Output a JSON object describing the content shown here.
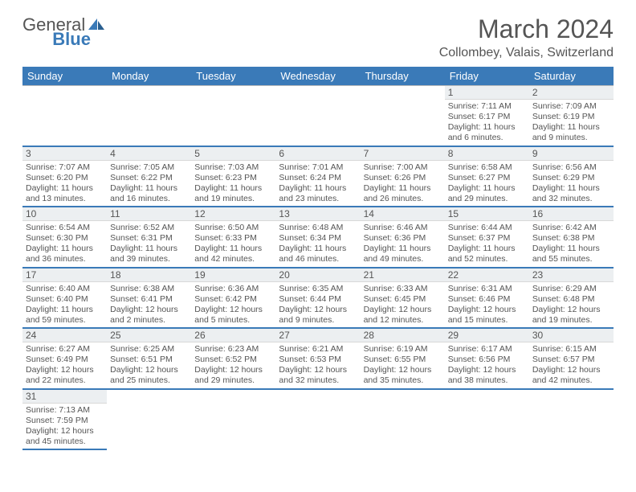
{
  "brand": {
    "part1": "General",
    "part2": "Blue"
  },
  "title": "March 2024",
  "location": "Collombey, Valais, Switzerland",
  "colors": {
    "accent": "#3a7ab8",
    "header_bg": "#3a7ab8",
    "header_text": "#ffffff",
    "daynum_bg": "#eceff1",
    "text": "#555555",
    "rule": "#bcbcbc"
  },
  "weekdays": [
    "Sunday",
    "Monday",
    "Tuesday",
    "Wednesday",
    "Thursday",
    "Friday",
    "Saturday"
  ],
  "weeks": [
    [
      null,
      null,
      null,
      null,
      null,
      {
        "n": "1",
        "sr": "Sunrise: 7:11 AM",
        "ss": "Sunset: 6:17 PM",
        "dl1": "Daylight: 11 hours",
        "dl2": "and 6 minutes."
      },
      {
        "n": "2",
        "sr": "Sunrise: 7:09 AM",
        "ss": "Sunset: 6:19 PM",
        "dl1": "Daylight: 11 hours",
        "dl2": "and 9 minutes."
      }
    ],
    [
      {
        "n": "3",
        "sr": "Sunrise: 7:07 AM",
        "ss": "Sunset: 6:20 PM",
        "dl1": "Daylight: 11 hours",
        "dl2": "and 13 minutes."
      },
      {
        "n": "4",
        "sr": "Sunrise: 7:05 AM",
        "ss": "Sunset: 6:22 PM",
        "dl1": "Daylight: 11 hours",
        "dl2": "and 16 minutes."
      },
      {
        "n": "5",
        "sr": "Sunrise: 7:03 AM",
        "ss": "Sunset: 6:23 PM",
        "dl1": "Daylight: 11 hours",
        "dl2": "and 19 minutes."
      },
      {
        "n": "6",
        "sr": "Sunrise: 7:01 AM",
        "ss": "Sunset: 6:24 PM",
        "dl1": "Daylight: 11 hours",
        "dl2": "and 23 minutes."
      },
      {
        "n": "7",
        "sr": "Sunrise: 7:00 AM",
        "ss": "Sunset: 6:26 PM",
        "dl1": "Daylight: 11 hours",
        "dl2": "and 26 minutes."
      },
      {
        "n": "8",
        "sr": "Sunrise: 6:58 AM",
        "ss": "Sunset: 6:27 PM",
        "dl1": "Daylight: 11 hours",
        "dl2": "and 29 minutes."
      },
      {
        "n": "9",
        "sr": "Sunrise: 6:56 AM",
        "ss": "Sunset: 6:29 PM",
        "dl1": "Daylight: 11 hours",
        "dl2": "and 32 minutes."
      }
    ],
    [
      {
        "n": "10",
        "sr": "Sunrise: 6:54 AM",
        "ss": "Sunset: 6:30 PM",
        "dl1": "Daylight: 11 hours",
        "dl2": "and 36 minutes."
      },
      {
        "n": "11",
        "sr": "Sunrise: 6:52 AM",
        "ss": "Sunset: 6:31 PM",
        "dl1": "Daylight: 11 hours",
        "dl2": "and 39 minutes."
      },
      {
        "n": "12",
        "sr": "Sunrise: 6:50 AM",
        "ss": "Sunset: 6:33 PM",
        "dl1": "Daylight: 11 hours",
        "dl2": "and 42 minutes."
      },
      {
        "n": "13",
        "sr": "Sunrise: 6:48 AM",
        "ss": "Sunset: 6:34 PM",
        "dl1": "Daylight: 11 hours",
        "dl2": "and 46 minutes."
      },
      {
        "n": "14",
        "sr": "Sunrise: 6:46 AM",
        "ss": "Sunset: 6:36 PM",
        "dl1": "Daylight: 11 hours",
        "dl2": "and 49 minutes."
      },
      {
        "n": "15",
        "sr": "Sunrise: 6:44 AM",
        "ss": "Sunset: 6:37 PM",
        "dl1": "Daylight: 11 hours",
        "dl2": "and 52 minutes."
      },
      {
        "n": "16",
        "sr": "Sunrise: 6:42 AM",
        "ss": "Sunset: 6:38 PM",
        "dl1": "Daylight: 11 hours",
        "dl2": "and 55 minutes."
      }
    ],
    [
      {
        "n": "17",
        "sr": "Sunrise: 6:40 AM",
        "ss": "Sunset: 6:40 PM",
        "dl1": "Daylight: 11 hours",
        "dl2": "and 59 minutes."
      },
      {
        "n": "18",
        "sr": "Sunrise: 6:38 AM",
        "ss": "Sunset: 6:41 PM",
        "dl1": "Daylight: 12 hours",
        "dl2": "and 2 minutes."
      },
      {
        "n": "19",
        "sr": "Sunrise: 6:36 AM",
        "ss": "Sunset: 6:42 PM",
        "dl1": "Daylight: 12 hours",
        "dl2": "and 5 minutes."
      },
      {
        "n": "20",
        "sr": "Sunrise: 6:35 AM",
        "ss": "Sunset: 6:44 PM",
        "dl1": "Daylight: 12 hours",
        "dl2": "and 9 minutes."
      },
      {
        "n": "21",
        "sr": "Sunrise: 6:33 AM",
        "ss": "Sunset: 6:45 PM",
        "dl1": "Daylight: 12 hours",
        "dl2": "and 12 minutes."
      },
      {
        "n": "22",
        "sr": "Sunrise: 6:31 AM",
        "ss": "Sunset: 6:46 PM",
        "dl1": "Daylight: 12 hours",
        "dl2": "and 15 minutes."
      },
      {
        "n": "23",
        "sr": "Sunrise: 6:29 AM",
        "ss": "Sunset: 6:48 PM",
        "dl1": "Daylight: 12 hours",
        "dl2": "and 19 minutes."
      }
    ],
    [
      {
        "n": "24",
        "sr": "Sunrise: 6:27 AM",
        "ss": "Sunset: 6:49 PM",
        "dl1": "Daylight: 12 hours",
        "dl2": "and 22 minutes."
      },
      {
        "n": "25",
        "sr": "Sunrise: 6:25 AM",
        "ss": "Sunset: 6:51 PM",
        "dl1": "Daylight: 12 hours",
        "dl2": "and 25 minutes."
      },
      {
        "n": "26",
        "sr": "Sunrise: 6:23 AM",
        "ss": "Sunset: 6:52 PM",
        "dl1": "Daylight: 12 hours",
        "dl2": "and 29 minutes."
      },
      {
        "n": "27",
        "sr": "Sunrise: 6:21 AM",
        "ss": "Sunset: 6:53 PM",
        "dl1": "Daylight: 12 hours",
        "dl2": "and 32 minutes."
      },
      {
        "n": "28",
        "sr": "Sunrise: 6:19 AM",
        "ss": "Sunset: 6:55 PM",
        "dl1": "Daylight: 12 hours",
        "dl2": "and 35 minutes."
      },
      {
        "n": "29",
        "sr": "Sunrise: 6:17 AM",
        "ss": "Sunset: 6:56 PM",
        "dl1": "Daylight: 12 hours",
        "dl2": "and 38 minutes."
      },
      {
        "n": "30",
        "sr": "Sunrise: 6:15 AM",
        "ss": "Sunset: 6:57 PM",
        "dl1": "Daylight: 12 hours",
        "dl2": "and 42 minutes."
      }
    ],
    [
      {
        "n": "31",
        "sr": "Sunrise: 7:13 AM",
        "ss": "Sunset: 7:59 PM",
        "dl1": "Daylight: 12 hours",
        "dl2": "and 45 minutes."
      },
      null,
      null,
      null,
      null,
      null,
      null
    ]
  ]
}
